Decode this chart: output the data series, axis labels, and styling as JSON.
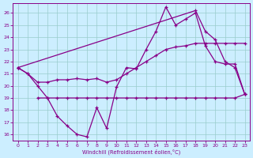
{
  "bg_color": "#cceeff",
  "line_color": "#880088",
  "grid_color": "#99cccc",
  "xlabel": "Windchill (Refroidissement éolien,°C)",
  "xlim": [
    -0.5,
    23.5
  ],
  "ylim": [
    15.5,
    26.8
  ],
  "yticks": [
    16,
    17,
    18,
    19,
    20,
    21,
    22,
    23,
    24,
    25,
    26
  ],
  "xticks": [
    0,
    1,
    2,
    3,
    4,
    5,
    6,
    7,
    8,
    9,
    10,
    11,
    12,
    13,
    14,
    15,
    16,
    17,
    18,
    19,
    20,
    21,
    22,
    23
  ],
  "line1_x": [
    0,
    1,
    2,
    3,
    4,
    5,
    6,
    7,
    8,
    9,
    10,
    11,
    12,
    13,
    14,
    15,
    16,
    17,
    18,
    19,
    20,
    21,
    22,
    23
  ],
  "line1_y": [
    21.5,
    21.0,
    20.0,
    19.0,
    17.5,
    16.7,
    16.0,
    15.8,
    18.2,
    16.5,
    19.9,
    21.5,
    21.4,
    23.0,
    24.5,
    26.5,
    25.0,
    25.5,
    26.0,
    23.3,
    22.0,
    21.8,
    21.8,
    19.3
  ],
  "line2_x": [
    0,
    1,
    2,
    3,
    4,
    5,
    6,
    7,
    8,
    9,
    10,
    11,
    12,
    13,
    14,
    15,
    16,
    17,
    18,
    19,
    20,
    21,
    22,
    23
  ],
  "line2_y": [
    21.5,
    21.0,
    20.3,
    20.3,
    20.5,
    20.5,
    20.6,
    20.5,
    20.6,
    20.3,
    20.5,
    21.0,
    21.5,
    22.0,
    22.5,
    23.0,
    23.2,
    23.3,
    23.5,
    23.5,
    23.5,
    23.5,
    23.5,
    23.5
  ],
  "line3_x": [
    2,
    3,
    4,
    5,
    6,
    7,
    8,
    9,
    10,
    11,
    12,
    13,
    14,
    15,
    16,
    17,
    18,
    19,
    20,
    21,
    22,
    23
  ],
  "line3_y": [
    19.0,
    19.0,
    19.0,
    19.0,
    19.0,
    19.0,
    19.0,
    19.0,
    19.0,
    19.0,
    19.0,
    19.0,
    19.0,
    19.0,
    19.0,
    19.0,
    19.0,
    19.0,
    19.0,
    19.0,
    19.0,
    19.3
  ],
  "line4_x": [
    0,
    18,
    19,
    20,
    21,
    22,
    23
  ],
  "line4_y": [
    21.5,
    26.2,
    24.5,
    23.8,
    22.0,
    21.5,
    19.3
  ]
}
